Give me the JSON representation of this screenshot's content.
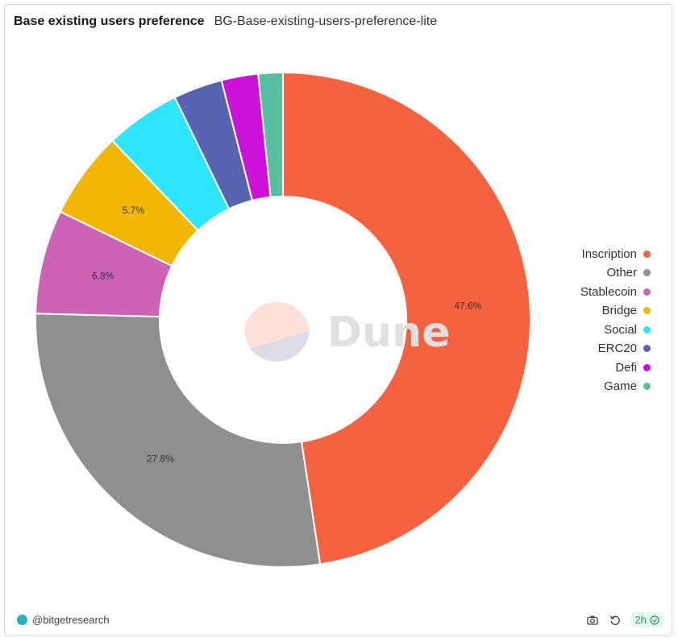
{
  "header": {
    "title": "Base existing users preference",
    "subtitle": "BG-Base-existing-users-preference-lite"
  },
  "watermark": {
    "text": "Dune",
    "icon": "dune-logo-icon"
  },
  "chart_data": {
    "type": "pie",
    "donut": true,
    "legend_position": "right",
    "categories": [
      "Inscription",
      "Other",
      "Stablecoin",
      "Bridge",
      "Social",
      "ERC20",
      "Defi",
      "Game"
    ],
    "values": [
      47.6,
      27.8,
      6.8,
      5.7,
      4.9,
      3.2,
      2.4,
      1.6
    ],
    "labels": [
      "47.6%",
      "27.8%",
      "6.8%",
      "5.7%",
      "",
      "",
      "",
      ""
    ],
    "colors": [
      "#f4623f",
      "#8f8f8f",
      "#cc63b7",
      "#f2b705",
      "#2ee6fc",
      "#5863b2",
      "#cc12d9",
      "#56bfa2"
    ]
  },
  "footer": {
    "author": "@bitgetresearch",
    "refresh_age": "2h",
    "icons": [
      "camera-icon",
      "refresh-icon",
      "check-circle-icon"
    ]
  }
}
